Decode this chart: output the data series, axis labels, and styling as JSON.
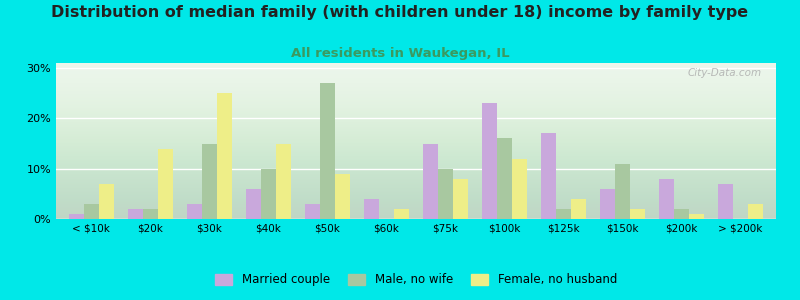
{
  "title": "Distribution of median family (with children under 18) income by family type",
  "subtitle": "All residents in Waukegan, IL",
  "categories": [
    "< $10k",
    "$20k",
    "$30k",
    "$40k",
    "$50k",
    "$60k",
    "$75k",
    "$100k",
    "$125k",
    "$150k",
    "$200k",
    "> $200k"
  ],
  "married_couple": [
    1,
    2,
    3,
    6,
    3,
    4,
    15,
    23,
    17,
    6,
    8,
    7
  ],
  "male_no_wife": [
    3,
    2,
    15,
    10,
    27,
    0,
    10,
    16,
    2,
    11,
    2,
    0
  ],
  "female_no_husband": [
    7,
    14,
    25,
    15,
    9,
    2,
    8,
    12,
    4,
    2,
    1,
    3
  ],
  "color_married": "#c9a8dc",
  "color_male": "#a8c8a0",
  "color_female": "#eeee88",
  "bg_color": "#00e8e8",
  "ylim": [
    0,
    31
  ],
  "yticks": [
    0,
    10,
    20,
    30
  ],
  "bar_width": 0.25,
  "title_fontsize": 11.5,
  "subtitle_fontsize": 9.5,
  "subtitle_color": "#3a9a60",
  "watermark": "City-Data.com"
}
